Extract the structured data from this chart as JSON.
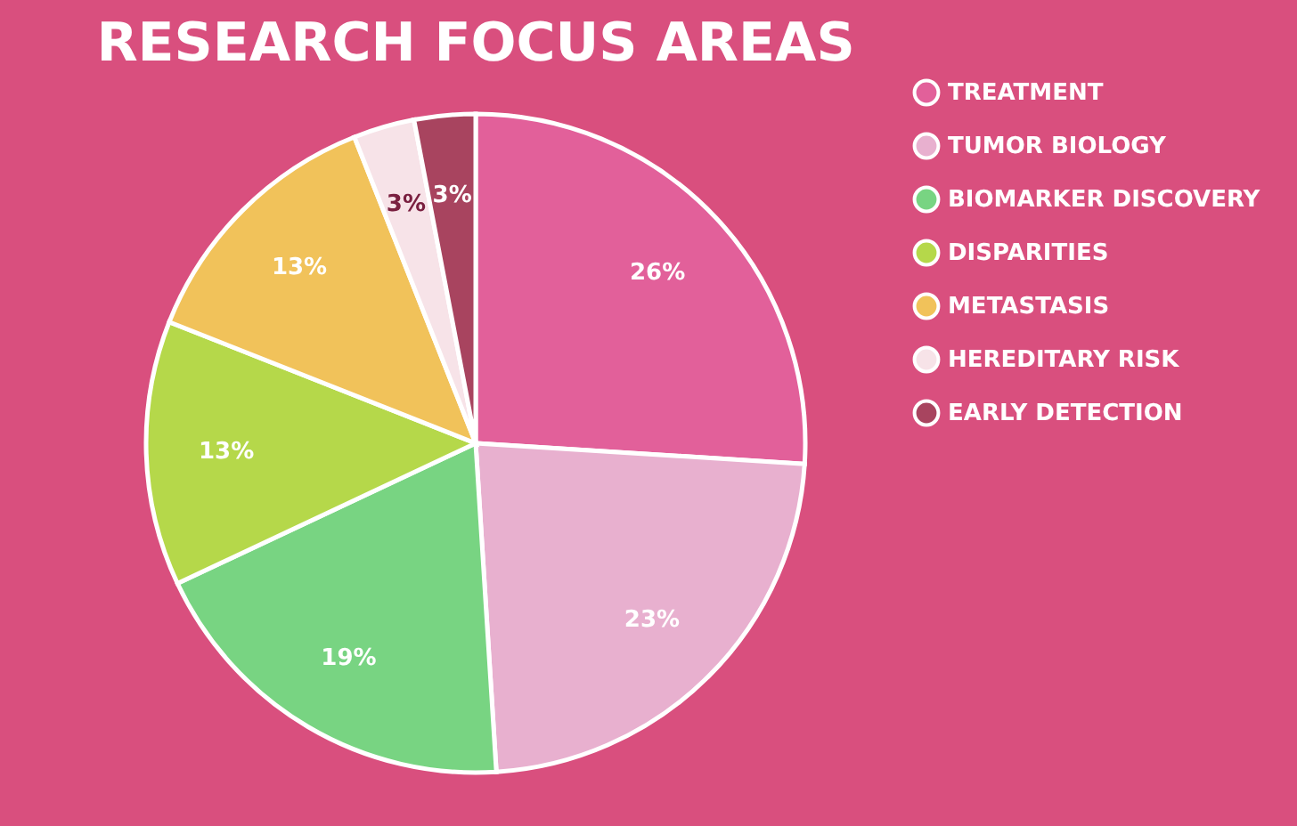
{
  "chart_data": {
    "type": "pie",
    "title": "RESEARCH FOCUS AREAS",
    "categories": [
      "TREATMENT",
      "TUMOR BIOLOGY",
      "BIOMARKER DISCOVERY",
      "DISPARITIES",
      "METASTASIS",
      "HEREDITARY RISK",
      "EARLY DETECTION"
    ],
    "values": [
      26,
      23,
      19,
      13,
      13,
      3,
      3
    ],
    "colors": [
      "#e2609a",
      "#e8b0cf",
      "#78d482",
      "#b5d84a",
      "#f1c25a",
      "#f7e3e8",
      "#a8445f"
    ],
    "value_labels": [
      "26%",
      "23%",
      "19%",
      "13%",
      "13%",
      "3%",
      "3%"
    ],
    "legend": "right"
  }
}
